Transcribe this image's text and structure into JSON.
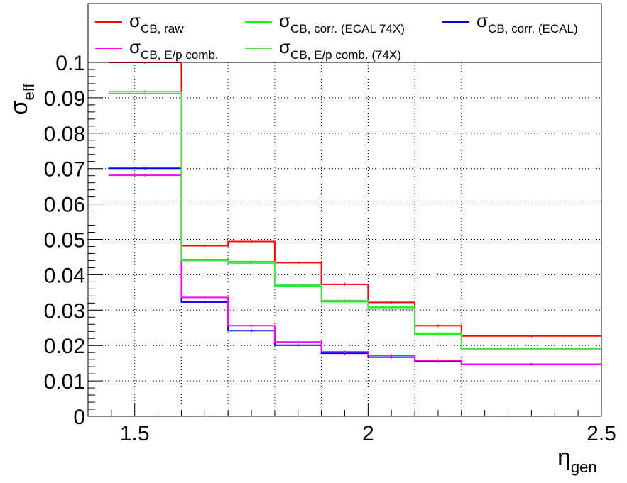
{
  "chart_data": {
    "type": "line",
    "style": "step-histogram",
    "xlabel": {
      "main": "η",
      "sub": "gen"
    },
    "ylabel": {
      "main": "σ",
      "sub": "eff"
    },
    "xlim": [
      1.4,
      2.5
    ],
    "ylim": [
      0,
      0.1
    ],
    "grid": true,
    "legend_position": "top",
    "x_ticks": [
      {
        "value": 1.5,
        "label": "1.5"
      },
      {
        "value": 2.0,
        "label": "2"
      },
      {
        "value": 2.5,
        "label": "2.5"
      }
    ],
    "y_ticks": [
      {
        "value": 0.0,
        "label": "0"
      },
      {
        "value": 0.01,
        "label": "0.01"
      },
      {
        "value": 0.02,
        "label": "0.02"
      },
      {
        "value": 0.03,
        "label": "0.03"
      },
      {
        "value": 0.04,
        "label": "0.04"
      },
      {
        "value": 0.05,
        "label": "0.05"
      },
      {
        "value": 0.06,
        "label": "0.06"
      },
      {
        "value": 0.07,
        "label": "0.07"
      },
      {
        "value": 0.08,
        "label": "0.08"
      },
      {
        "value": 0.09,
        "label": "0.09"
      },
      {
        "value": 0.1,
        "label": "0.1"
      }
    ],
    "bin_edges": [
      1.4442,
      1.6,
      1.7,
      1.8,
      1.9,
      2.0,
      2.1,
      2.2,
      2.5
    ],
    "series": [
      {
        "name": "σ",
        "name_sub": "CB, raw",
        "color": "#ff0000",
        "values": [
          0.1,
          0.0482,
          0.0494,
          0.0434,
          0.0373,
          0.0322,
          0.0256,
          0.0227
        ]
      },
      {
        "name": "σ",
        "name_sub": "CB, corr. (ECAL 74X)",
        "color": "#00ff00",
        "values": [
          0.0912,
          0.0443,
          0.0437,
          0.0369,
          0.0324,
          0.0308,
          0.0232,
          0.0191
        ]
      },
      {
        "name": "σ",
        "name_sub": "CB, corr. (ECAL)",
        "color": "#0000ff",
        "values": [
          0.0701,
          0.0323,
          0.0242,
          0.0201,
          0.0178,
          0.0167,
          0.0155,
          0.0147
        ]
      },
      {
        "name": "σ",
        "name_sub": "CB, E/p comb.",
        "color": "#ff00ff",
        "values": [
          0.0681,
          0.0336,
          0.0256,
          0.021,
          0.0182,
          0.0172,
          0.0158,
          0.0147
        ]
      },
      {
        "name": "σ",
        "name_sub": "CB, E/p comb. (74X)",
        "color": "#55d855",
        "values": [
          0.0918,
          0.044,
          0.0433,
          0.0372,
          0.0327,
          0.0303,
          0.0235,
          0.0191
        ]
      }
    ]
  }
}
